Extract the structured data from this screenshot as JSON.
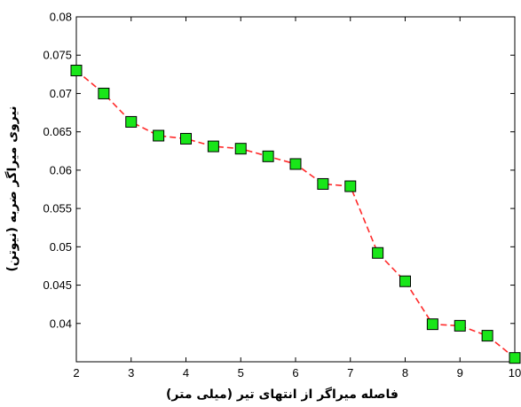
{
  "chart_data": {
    "type": "line",
    "title": "",
    "xlabel": "فاصله میراگر از انتهای تیر (میلی متر)",
    "ylabel": "نیروی میراگر ضربه (نیوتن)",
    "xlim": [
      2,
      10
    ],
    "ylim": [
      0.035,
      0.08
    ],
    "xticks": [
      2,
      3,
      4,
      5,
      6,
      7,
      8,
      9,
      10
    ],
    "xtick_labels": [
      "2",
      "3",
      "4",
      "5",
      "6",
      "7",
      "8",
      "9",
      "10"
    ],
    "yticks": [
      0.04,
      0.045,
      0.05,
      0.055,
      0.06,
      0.065,
      0.07,
      0.075,
      0.08
    ],
    "ytick_labels": [
      "0.04",
      "0.045",
      "0.05",
      "0.055",
      "0.06",
      "0.065",
      "0.07",
      "0.075",
      "0.08"
    ],
    "grid": false,
    "series": [
      {
        "x": [
          2,
          2.5,
          3,
          3.5,
          4,
          4.5,
          5,
          5.5,
          6,
          6.5,
          7,
          7.5,
          8,
          8.5,
          9,
          9.5,
          10
        ],
        "values": [
          0.073,
          0.07,
          0.0663,
          0.0645,
          0.0641,
          0.0631,
          0.0628,
          0.0618,
          0.0608,
          0.0582,
          0.0579,
          0.0492,
          0.0455,
          0.0399,
          0.0397,
          0.0384,
          0.0355
        ],
        "line_color": "#ff2a2a",
        "line_style": "dashed",
        "marker": "square",
        "marker_fill": "#19e619",
        "marker_edge": "#000000"
      }
    ]
  }
}
